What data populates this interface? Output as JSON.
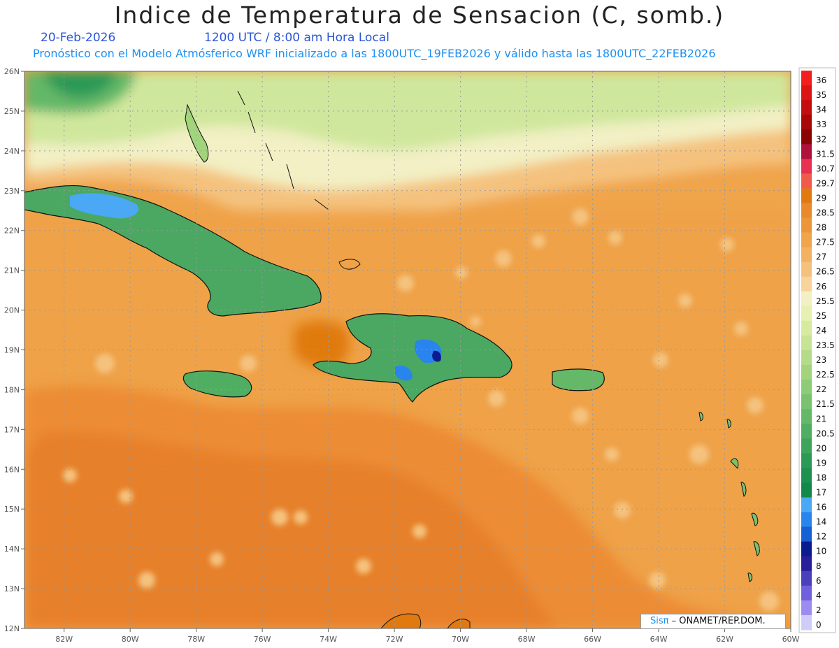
{
  "header": {
    "title": "Indice de Temperatura de Sensacion (C, somb.)",
    "date": "20-Feb-2026",
    "time": "1200 UTC / 8:00 am Hora Local",
    "subtitle": "Pronóstico con el Modelo Atmósferico WRF inicializado a las 1800UTC_19FEB2026 y válido hasta las  1800UTC_22FEB2026"
  },
  "map": {
    "lon_range": [
      -83.2,
      -60
    ],
    "lat_range": [
      12,
      26
    ],
    "x_ticks": [
      "82W",
      "80W",
      "78W",
      "76W",
      "74W",
      "72W",
      "70W",
      "68W",
      "66W",
      "64W",
      "62W",
      "60W"
    ],
    "y_ticks": [
      "12N",
      "13N",
      "14N",
      "15N",
      "16N",
      "17N",
      "18N",
      "19N",
      "20N",
      "21N",
      "22N",
      "23N",
      "24N",
      "25N",
      "26N"
    ],
    "background_color": "#efa248"
  },
  "colorbar": {
    "levels": [
      {
        "label": "36",
        "color": "#f21e1e"
      },
      {
        "label": "35",
        "color": "#dc1414"
      },
      {
        "label": "34",
        "color": "#c40e0e"
      },
      {
        "label": "33",
        "color": "#a80808"
      },
      {
        "label": "32",
        "color": "#8a0404"
      },
      {
        "label": "31.5",
        "color": "#b0103c"
      },
      {
        "label": "30.7",
        "color": "#e83050"
      },
      {
        "label": "29.7",
        "color": "#f05a4a"
      },
      {
        "label": "29",
        "color": "#e07a10"
      },
      {
        "label": "28.5",
        "color": "#e88a2c"
      },
      {
        "label": "28",
        "color": "#ec963c"
      },
      {
        "label": "27.5",
        "color": "#f0a44c"
      },
      {
        "label": "27",
        "color": "#f2b264"
      },
      {
        "label": "26.5",
        "color": "#f4c27e"
      },
      {
        "label": "26",
        "color": "#f6d49a"
      },
      {
        "label": "25.5",
        "color": "#f2f0c4"
      },
      {
        "label": "25",
        "color": "#e6f0b0"
      },
      {
        "label": "24",
        "color": "#d6eba0"
      },
      {
        "label": "23.5",
        "color": "#c6e494"
      },
      {
        "label": "23",
        "color": "#b4dc88"
      },
      {
        "label": "22.5",
        "color": "#a2d47c"
      },
      {
        "label": "22",
        "color": "#8ccc76"
      },
      {
        "label": "21.5",
        "color": "#78c270"
      },
      {
        "label": "21",
        "color": "#64b868"
      },
      {
        "label": "20.5",
        "color": "#50ae62"
      },
      {
        "label": "20",
        "color": "#3ea45c"
      },
      {
        "label": "19",
        "color": "#2c9a56"
      },
      {
        "label": "18",
        "color": "#1e9050"
      },
      {
        "label": "17",
        "color": "#12884a"
      },
      {
        "label": "16",
        "color": "#4aa8f4"
      },
      {
        "label": "14",
        "color": "#2a84ee"
      },
      {
        "label": "12",
        "color": "#1460d4"
      },
      {
        "label": "10",
        "color": "#0a1c90"
      },
      {
        "label": "8",
        "color": "#2a1e9c"
      },
      {
        "label": "6",
        "color": "#4a40bc"
      },
      {
        "label": "4",
        "color": "#7060dc"
      },
      {
        "label": "2",
        "color": "#9c8cf0"
      },
      {
        "label": "0",
        "color": "#d0ccfa"
      }
    ]
  },
  "credit": {
    "logo": "Sisπ",
    "text": "– ONAMET/REP.DOM."
  }
}
